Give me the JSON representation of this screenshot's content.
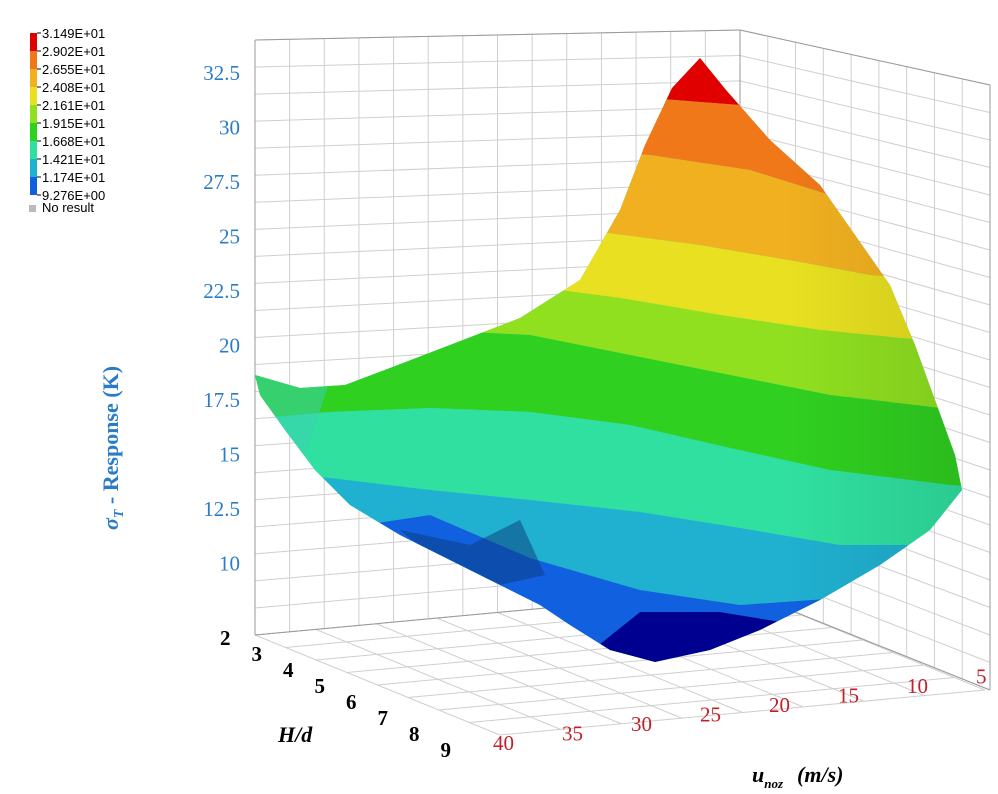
{
  "chart_data": {
    "type": "surface3d",
    "legend": {
      "entries": [
        "3.149E+01",
        "2.902E+01",
        "2.655E+01",
        "2.408E+01",
        "2.161E+01",
        "1.915E+01",
        "1.668E+01",
        "1.421E+01",
        "1.174E+01",
        "9.276E+00"
      ],
      "colors": [
        "#e00000",
        "#f07818",
        "#f0b020",
        "#e8e020",
        "#90e020",
        "#30d020",
        "#30e0a0",
        "#20b0d0",
        "#1060e0",
        "#000090"
      ],
      "no_result_label": "No result",
      "no_result_color": "#bbbbbb",
      "placement": "top-left"
    },
    "z_axis": {
      "label": "σ_T - Response (K)",
      "label_symbol": "σ",
      "label_sub": "T",
      "label_rest": " - Response (K)",
      "ticks": [
        "32.5",
        "30",
        "27.5",
        "25",
        "22.5",
        "20",
        "17.5",
        "15",
        "12.5",
        "10"
      ],
      "range": [
        8,
        33
      ]
    },
    "hd_axis": {
      "label": "H/d",
      "ticks": [
        "2",
        "3",
        "4",
        "5",
        "6",
        "7",
        "8",
        "9"
      ],
      "range": [
        2,
        9.5
      ]
    },
    "u_axis": {
      "label": "u_noz (m/s)",
      "label_main": "u",
      "label_sub": "noz",
      "label_unit": "(m/s)",
      "ticks": [
        "40",
        "35",
        "30",
        "25",
        "20",
        "15",
        "10",
        "5"
      ],
      "range": [
        5,
        40
      ]
    },
    "surface_samples": [
      {
        "H_d": 2,
        "u_noz": 40,
        "sigma_T": 18.8
      },
      {
        "H_d": 9.5,
        "u_noz": 40,
        "sigma_T": 10.5
      },
      {
        "H_d": 9.5,
        "u_noz": 22,
        "sigma_T": 9.3
      },
      {
        "H_d": 9.5,
        "u_noz": 5,
        "sigma_T": 14.2
      },
      {
        "H_d": 2,
        "u_noz": 5,
        "sigma_T": 31.5
      }
    ],
    "grid": true
  }
}
